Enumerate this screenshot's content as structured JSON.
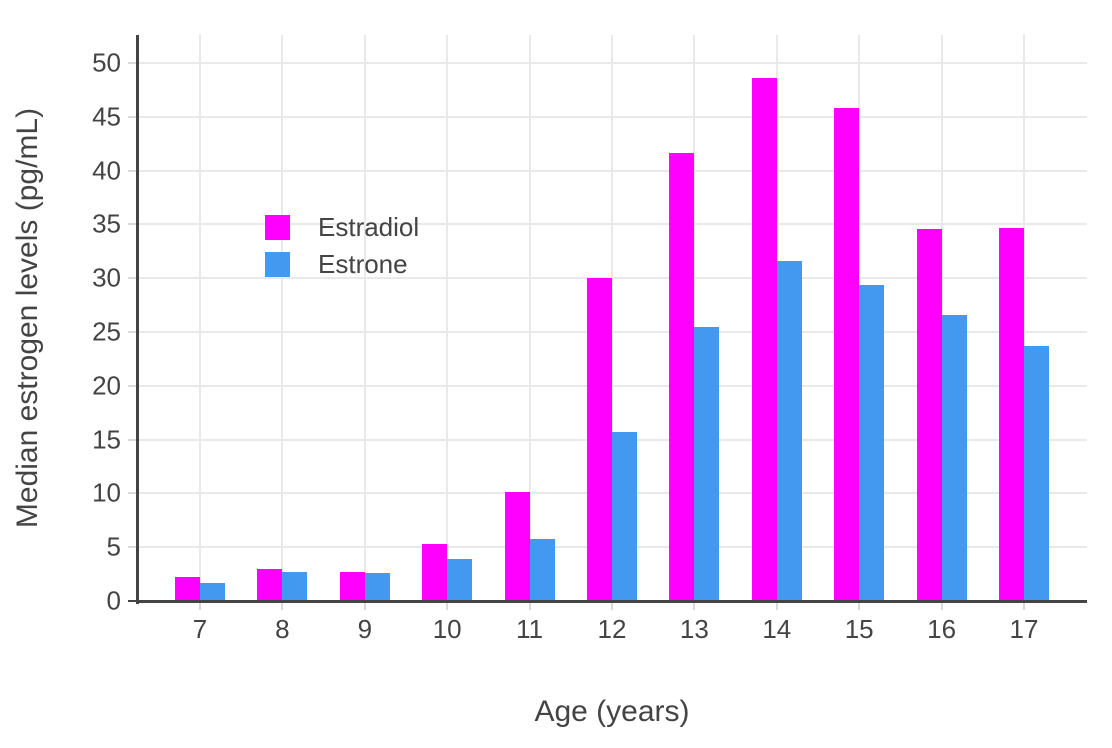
{
  "chart_data": {
    "type": "bar",
    "title": "",
    "xlabel": "Age (years)",
    "ylabel": "Median estrogen levels (pg/mL)",
    "categories": [
      "7",
      "8",
      "9",
      "10",
      "11",
      "12",
      "13",
      "14",
      "15",
      "16",
      "17"
    ],
    "series": [
      {
        "name": "Estradiol",
        "color": "#FF00FF",
        "values": [
          2.2,
          3.0,
          2.7,
          5.3,
          10.1,
          30.0,
          41.6,
          48.6,
          45.8,
          34.6,
          34.7
        ]
      },
      {
        "name": "Estrone",
        "color": "#4398F0",
        "values": [
          1.7,
          2.7,
          2.6,
          3.9,
          5.8,
          15.7,
          25.5,
          31.6,
          29.4,
          26.6,
          23.7
        ]
      }
    ],
    "ylim": [
      0,
      52.6
    ],
    "yticks": [
      0,
      5,
      10,
      15,
      20,
      25,
      30,
      35,
      40,
      45,
      50
    ],
    "grid": true,
    "legend_position": "inside-upper-left"
  },
  "legend": {
    "items": [
      {
        "label": "Estradiol",
        "color": "#FF00FF"
      },
      {
        "label": "Estrone",
        "color": "#4398F0"
      }
    ]
  },
  "colors": {
    "estradiol": "#FF00FF",
    "estrone": "#4398F0",
    "text": "#444444",
    "axis": "#444444",
    "grid": "#e9e9e9",
    "tick": "#d9d9d9",
    "background": "#ffffff"
  }
}
